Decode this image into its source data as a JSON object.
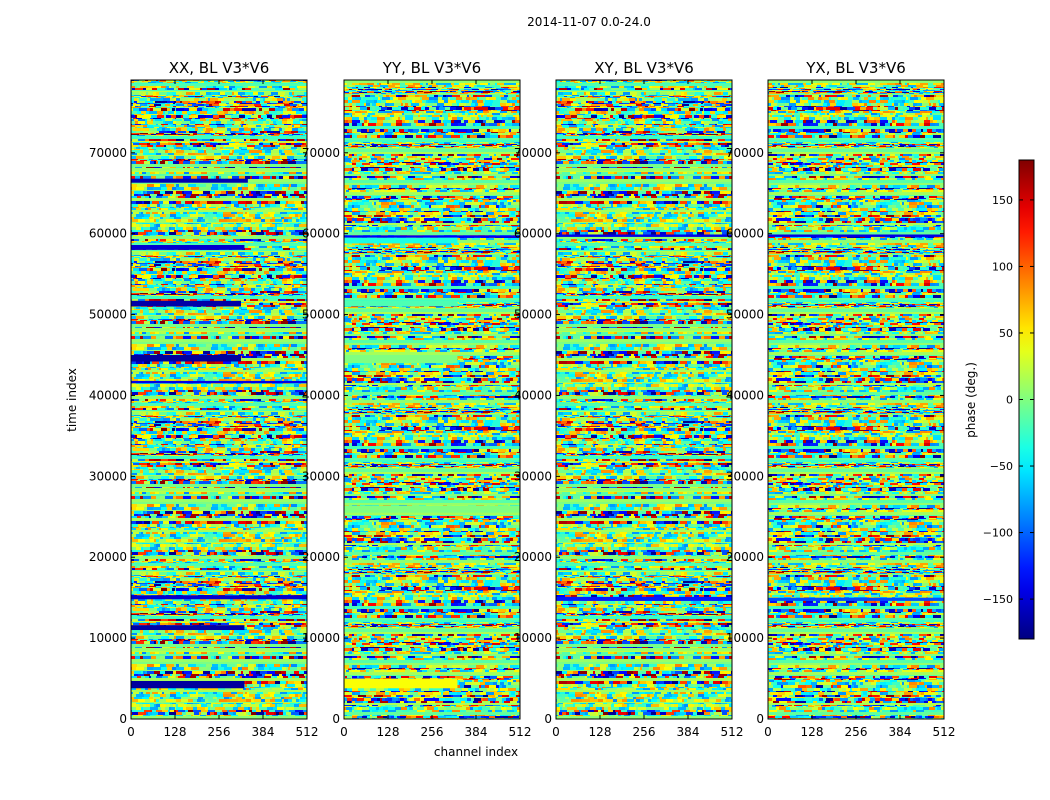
{
  "figure": {
    "title": "2014-11-07 0.0-24.0"
  },
  "chart_data": {
    "type": "heatmap",
    "title": "2014-11-07 0.0-24.0",
    "xlabel": "channel index",
    "ylabel": "time index",
    "xlim": [
      0,
      512
    ],
    "ylim": [
      0,
      79000
    ],
    "xticks": [
      0,
      128,
      256,
      384,
      512
    ],
    "yticks": [
      0,
      10000,
      20000,
      30000,
      40000,
      50000,
      60000,
      70000
    ],
    "colormap": "jet",
    "panels": [
      {
        "title": "XX, BL V3*V6"
      },
      {
        "title": "YY, BL V3*V6"
      },
      {
        "title": "XY, BL V3*V6"
      },
      {
        "title": "YX, BL V3*V6"
      }
    ],
    "colorbar": {
      "label": "phase (deg.)",
      "range": [
        -180,
        180
      ],
      "ticks": [
        -150,
        -100,
        -50,
        0,
        50,
        100,
        150
      ]
    },
    "tick_labels": {
      "x": [
        "0",
        "128",
        "256",
        "384",
        "512"
      ],
      "y": [
        "0",
        "10000",
        "20000",
        "30000",
        "40000",
        "50000",
        "60000",
        "70000"
      ],
      "colorbar": [
        "−150",
        "−100",
        "−50",
        "0",
        "50",
        "100",
        "150"
      ]
    }
  }
}
